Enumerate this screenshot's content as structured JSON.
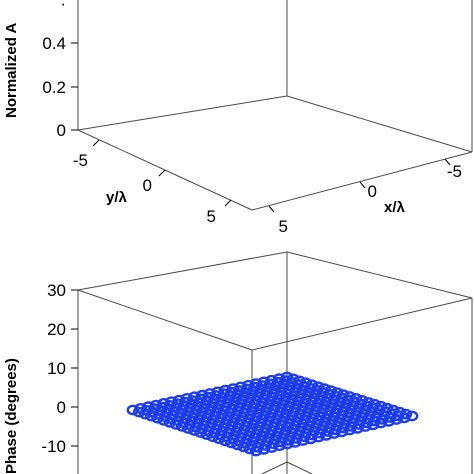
{
  "chart_data": [
    {
      "type": "scatter",
      "title": "",
      "zlabel": "Normalized A",
      "xlabel": "x/λ",
      "ylabel": "y/λ",
      "z_ticks": [
        "0",
        "0.2",
        "0.4"
      ],
      "x_ticks": [
        "-5",
        "0",
        "5"
      ],
      "y_ticks": [
        "-5",
        "0",
        "5"
      ],
      "x_range": [
        -5,
        5
      ],
      "y_range": [
        -5,
        5
      ],
      "zlim": [
        0,
        0.5
      ],
      "grid": false,
      "legend": "none"
    },
    {
      "type": "scatter",
      "title": "",
      "zlabel": "Phase (degrees)",
      "z_ticks": [
        "30",
        "20",
        "10",
        "0",
        "-10"
      ],
      "zlim": [
        -10,
        30
      ],
      "marker": "open-circle",
      "marker_color": "#1c3cf0",
      "grid_points_per_side": 21,
      "phase_value": 0,
      "grid": false,
      "legend": "none"
    }
  ]
}
